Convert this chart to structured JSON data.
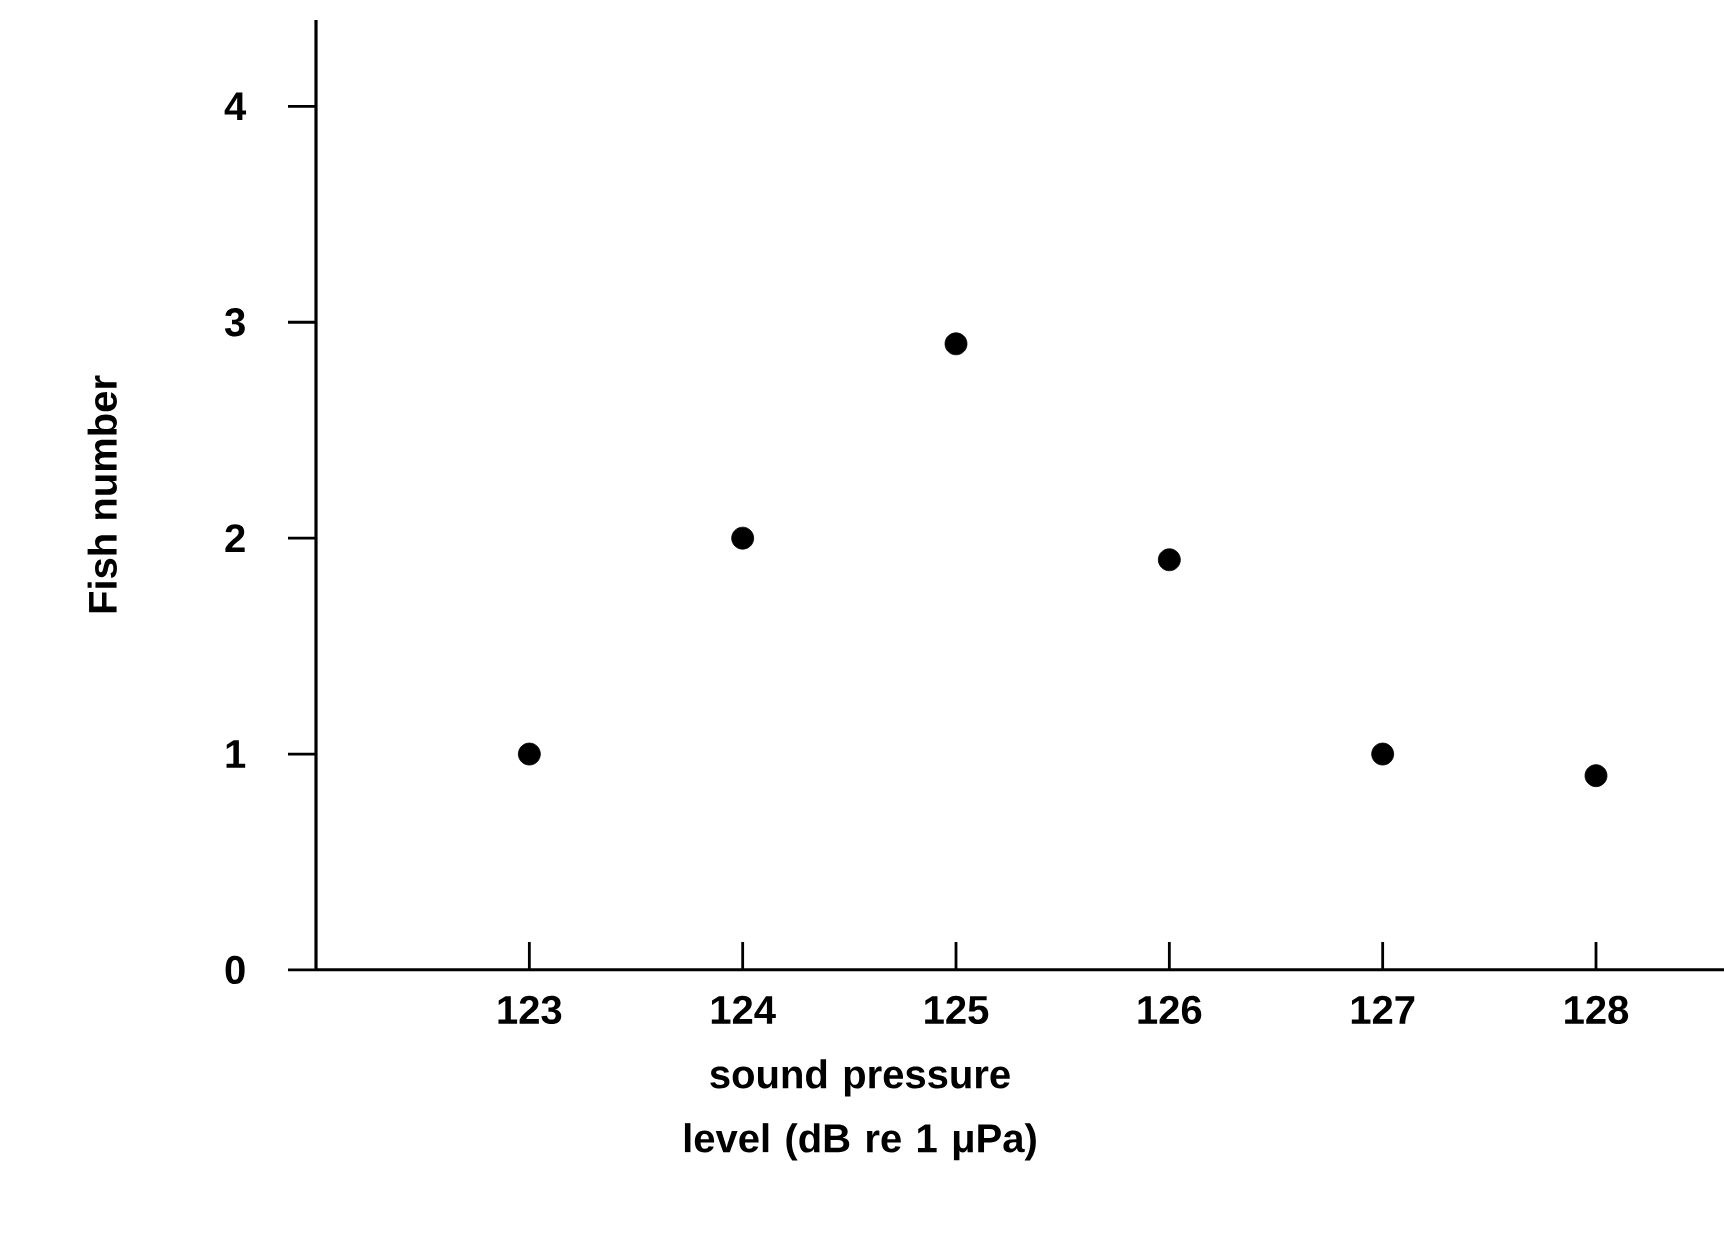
{
  "chart_data": {
    "type": "scatter",
    "xlabel": "sound pressure level (dB re 1 μPa)",
    "ylabel": "Fish number",
    "x": [
      123,
      124,
      125,
      126,
      127,
      128
    ],
    "series": [
      {
        "color": "#000000",
        "values": [
          1.0,
          2.0,
          2.9,
          1.9,
          1.0,
          0.9
        ]
      }
    ],
    "xlim": [
      122,
      128.6
    ],
    "ylim": [
      0,
      4.4
    ],
    "xticks": [
      123,
      124,
      125,
      126,
      127,
      128
    ],
    "yticks": [
      0,
      1,
      2,
      3,
      4
    ],
    "marker": "circle",
    "grid": false
  }
}
